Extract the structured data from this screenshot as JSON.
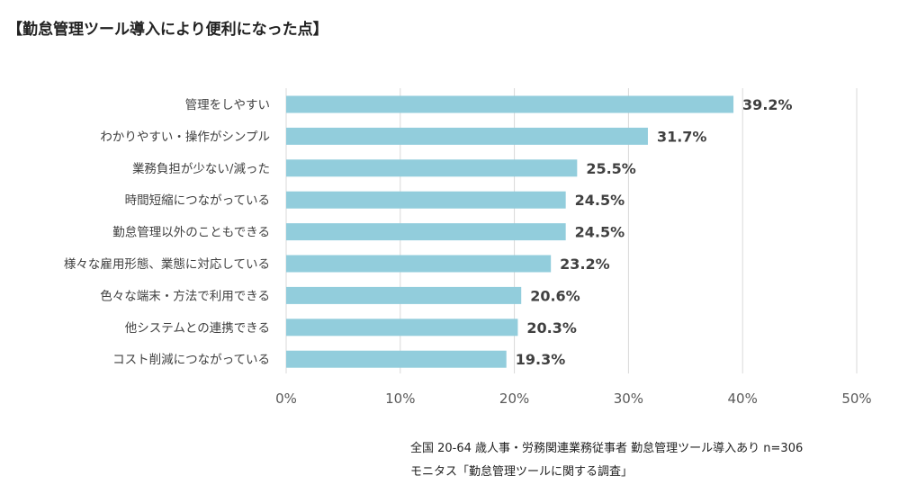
{
  "title": "【勤怠管理ツール導入により便利になった点】",
  "chart_data": {
    "type": "bar",
    "orientation": "horizontal",
    "title": "【勤怠管理ツール導入により便利になった点】",
    "categories": [
      "管理をしやすい",
      "わかりやすい・操作がシンプル",
      "業務負担が少ない/減った",
      "時間短縮につながっている",
      "勤怠管理以外のこともできる",
      "様々な雇用形態、業態に対応している",
      "色々な端末・方法で利用できる",
      "他システムとの連携できる",
      "コスト削減につながっている"
    ],
    "values": [
      39.2,
      31.7,
      25.5,
      24.5,
      24.5,
      23.2,
      20.6,
      20.3,
      19.3
    ],
    "value_labels": [
      "39.2%",
      "31.7%",
      "25.5%",
      "24.5%",
      "24.5%",
      "23.2%",
      "20.6%",
      "20.3%",
      "19.3%"
    ],
    "xlim": [
      0,
      50
    ],
    "xticks": [
      0,
      10,
      20,
      30,
      40,
      50
    ],
    "xtick_labels": [
      "0%",
      "10%",
      "20%",
      "30%",
      "40%",
      "50%"
    ],
    "xlabel": "",
    "ylabel": "",
    "grid": true,
    "bar_color": "#92cddc",
    "grid_color": "#d9d9d9"
  },
  "source": {
    "line1": "全国 20-64 歳人事・労務関連業務従事者 勤怠管理ツール導入あり n=306",
    "line2": "モニタス「勤怠管理ツールに関する調査」"
  }
}
